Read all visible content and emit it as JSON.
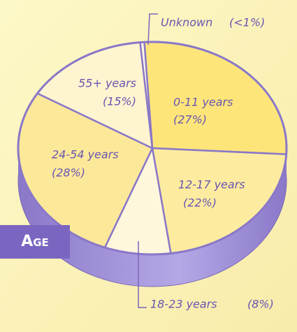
{
  "chart_data": {
    "type": "pie",
    "title": "Age",
    "categories": [
      "0-11 years",
      "12-17 years",
      "18-23 years",
      "24-54 years",
      "55+ years",
      "Unknown"
    ],
    "values": [
      27,
      22,
      8,
      28,
      15,
      0.5
    ],
    "value_labels": [
      "(27%)",
      "(22%)",
      "(8%)",
      "(28%)",
      "(15%)",
      "(<1%)"
    ],
    "colors": [
      "#fde57a",
      "#fdeca0",
      "#fff7dc",
      "#fce899",
      "#fef4cf",
      "#fef8e2"
    ]
  }
}
